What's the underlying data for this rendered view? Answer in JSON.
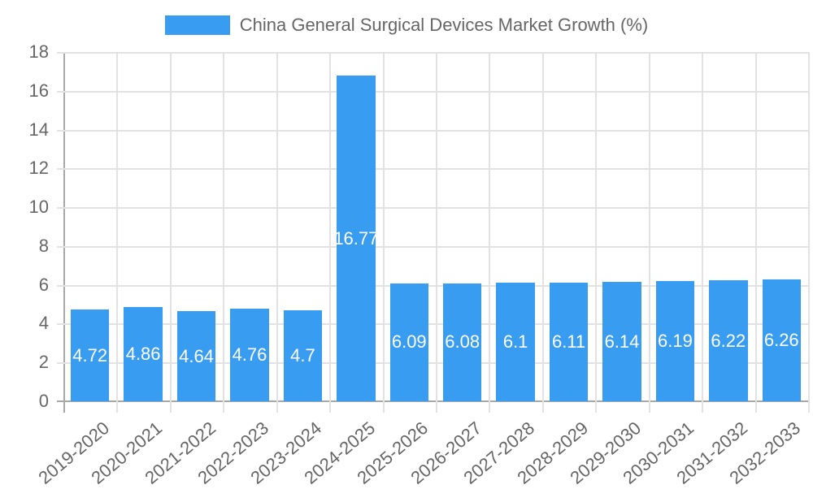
{
  "legend": {
    "label": "China General Surgical Devices Market Growth (%)",
    "color": "#389cf0"
  },
  "yaxis": {
    "ticks": [
      "18",
      "16",
      "14",
      "12",
      "10",
      "8",
      "6",
      "4",
      "2",
      "0"
    ]
  },
  "chart_data": {
    "type": "bar",
    "title": "",
    "xlabel": "",
    "ylabel": "",
    "ylim": [
      0,
      18
    ],
    "legend_position": "top",
    "grid": true,
    "categories": [
      "2019-2020",
      "2020-2021",
      "2021-2022",
      "2022-2023",
      "2023-2024",
      "2024-2025",
      "2025-2026",
      "2026-2027",
      "2027-2028",
      "2028-2029",
      "2029-2030",
      "2030-2031",
      "2031-2032",
      "2032-2033"
    ],
    "series": [
      {
        "name": "China General Surgical Devices Market Growth (%)",
        "color": "#389cf0",
        "values": [
          4.72,
          4.86,
          4.64,
          4.76,
          4.7,
          16.77,
          6.09,
          6.08,
          6.1,
          6.11,
          6.14,
          6.19,
          6.22,
          6.26
        ]
      }
    ],
    "labels": [
      "4.72",
      "4.86",
      "4.64",
      "4.76",
      "4.7",
      "16.77",
      "6.09",
      "6.08",
      "6.1",
      "6.11",
      "6.14",
      "6.19",
      "6.22",
      "6.26"
    ]
  }
}
